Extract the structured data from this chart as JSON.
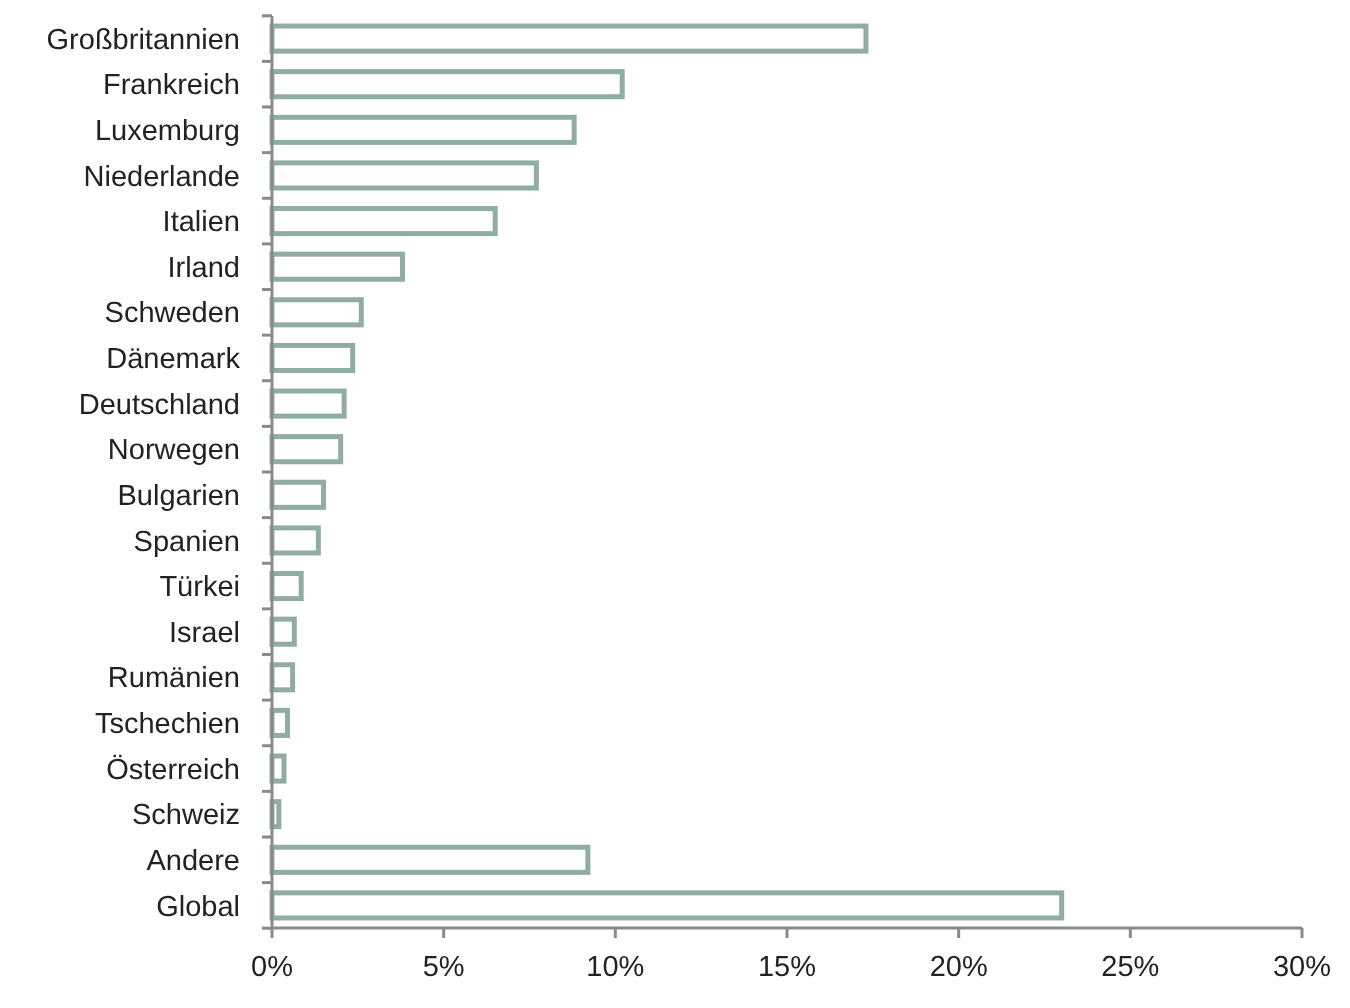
{
  "chart_data": {
    "type": "bar",
    "orientation": "horizontal",
    "categories": [
      "Großbritannien",
      "Frankreich",
      "Luxemburg",
      "Niederlande",
      "Italien",
      "Irland",
      "Schweden",
      "Dänemark",
      "Deutschland",
      "Norwegen",
      "Bulgarien",
      "Spanien",
      "Türkei",
      "Israel",
      "Rumänien",
      "Tschechien",
      "Österreich",
      "Schweiz",
      "Andere",
      "Global"
    ],
    "values": [
      17.3,
      10.2,
      8.8,
      7.7,
      6.5,
      3.8,
      2.6,
      2.35,
      2.1,
      2.0,
      1.5,
      1.35,
      0.85,
      0.65,
      0.6,
      0.45,
      0.35,
      0.2,
      9.2,
      23.0
    ],
    "color": "#8fada0",
    "xlim": [
      0,
      30
    ],
    "xticks": [
      {
        "value": 0,
        "label": "0%"
      },
      {
        "value": 5,
        "label": "5%"
      },
      {
        "value": 10,
        "label": "10%"
      },
      {
        "value": 15,
        "label": "15%"
      },
      {
        "value": 20,
        "label": "20%"
      },
      {
        "value": 25,
        "label": "25%"
      },
      {
        "value": 30,
        "label": "30%"
      }
    ],
    "grid": false
  }
}
